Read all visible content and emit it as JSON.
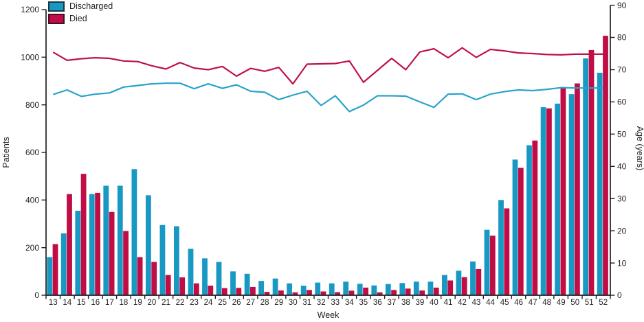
{
  "figure": {
    "background": "#ffffff",
    "text_color": "#231f20",
    "axis_color": "#231f20"
  },
  "legend": {
    "items": [
      {
        "label": "Discharged",
        "color": "#1899c4",
        "border": "#1c3742"
      },
      {
        "label": "Died",
        "color": "#c00d45",
        "border": "#43102a"
      }
    ]
  },
  "chart_data": [
    {
      "type": "bar",
      "axis": "left",
      "title": "",
      "xlabel": "Week",
      "ylabel": "Patients",
      "ylim": [
        0,
        1200
      ],
      "yticks": [
        0,
        200,
        400,
        600,
        800,
        1000,
        1200
      ],
      "grid": false,
      "categories": [
        13,
        14,
        15,
        16,
        17,
        18,
        19,
        20,
        21,
        22,
        23,
        24,
        25,
        26,
        27,
        28,
        29,
        30,
        31,
        32,
        33,
        34,
        35,
        36,
        37,
        38,
        39,
        40,
        41,
        42,
        43,
        44,
        45,
        46,
        47,
        48,
        49,
        50,
        51,
        52
      ],
      "series": [
        {
          "name": "Discharged",
          "color": "#1899c4",
          "values": [
            160,
            260,
            355,
            425,
            460,
            460,
            530,
            420,
            295,
            290,
            195,
            155,
            140,
            100,
            90,
            60,
            70,
            50,
            40,
            53,
            50,
            57,
            48,
            41,
            47,
            51,
            57,
            57,
            85,
            103,
            142,
            275,
            400,
            570,
            630,
            790,
            805,
            845,
            995,
            935
          ]
        },
        {
          "name": "Died",
          "color": "#c00d45",
          "values": [
            215,
            425,
            510,
            430,
            350,
            270,
            160,
            140,
            85,
            75,
            50,
            40,
            30,
            31,
            35,
            14,
            20,
            12,
            22,
            16,
            13,
            19,
            32,
            12,
            22,
            28,
            20,
            32,
            62,
            76,
            110,
            250,
            365,
            535,
            650,
            785,
            875,
            890,
            1030,
            1090
          ]
        }
      ]
    },
    {
      "type": "line",
      "axis": "right",
      "title": "",
      "xlabel": "Week",
      "ylabel": "Age (years)",
      "ylim": [
        0,
        90
      ],
      "yticks": [
        0,
        10,
        20,
        30,
        40,
        50,
        60,
        70,
        80,
        90
      ],
      "grid": false,
      "x": [
        13,
        14,
        15,
        16,
        17,
        18,
        19,
        20,
        21,
        22,
        23,
        24,
        25,
        26,
        27,
        28,
        29,
        30,
        31,
        32,
        33,
        34,
        35,
        36,
        37,
        38,
        39,
        40,
        41,
        42,
        43,
        44,
        45,
        46,
        47,
        48,
        49,
        50,
        51,
        52
      ],
      "series": [
        {
          "name": "Discharged (mean age)",
          "color": "#29a3c9",
          "values": [
            62.3,
            63.7,
            61.7,
            62.4,
            62.8,
            64.6,
            65.1,
            65.6,
            65.8,
            65.8,
            64.1,
            65.6,
            64.2,
            65.3,
            63.3,
            63.0,
            60.7,
            62.1,
            63.3,
            58.9,
            61.9,
            57.0,
            59.0,
            61.9,
            61.9,
            61.8,
            60.0,
            58.3,
            62.4,
            62.5,
            60.7,
            62.4,
            63.2,
            63.7,
            63.5,
            63.9,
            64.4,
            64.3,
            64.3,
            64.3
          ]
        },
        {
          "name": "Died (mean age)",
          "color": "#c01048",
          "values": [
            75.4,
            72.9,
            73.4,
            73.7,
            73.5,
            72.7,
            72.5,
            71.2,
            70.2,
            72.2,
            70.5,
            70.0,
            71.0,
            68.0,
            70.4,
            69.5,
            70.7,
            65.6,
            71.7,
            71.8,
            71.9,
            72.7,
            66.1,
            69.8,
            73.5,
            70.0,
            75.5,
            76.5,
            73.7,
            76.8,
            73.8,
            76.3,
            75.8,
            75.2,
            75.0,
            74.7,
            74.6,
            74.8,
            74.8,
            74.8
          ]
        }
      ]
    }
  ]
}
